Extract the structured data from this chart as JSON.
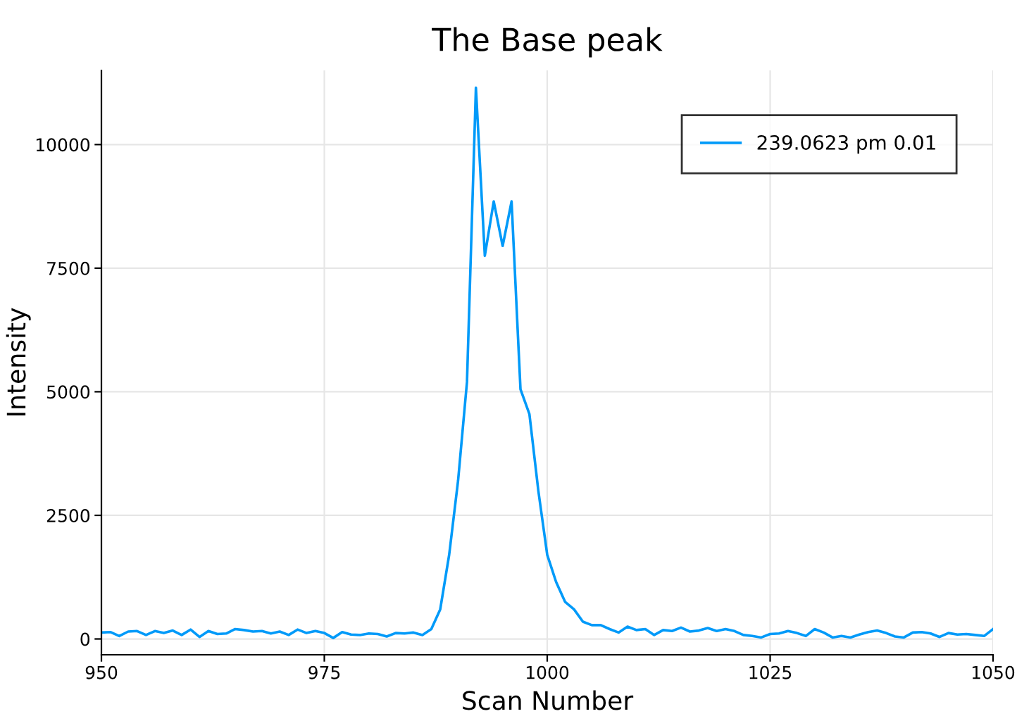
{
  "chart_data": {
    "type": "line",
    "title": "The Base peak",
    "xlabel": "Scan Number",
    "ylabel": "Intensity",
    "x": [
      950,
      951,
      952,
      953,
      954,
      955,
      956,
      957,
      958,
      959,
      960,
      961,
      962,
      963,
      964,
      965,
      966,
      967,
      968,
      969,
      970,
      971,
      972,
      973,
      974,
      975,
      976,
      977,
      978,
      979,
      980,
      981,
      982,
      983,
      984,
      985,
      986,
      987,
      988,
      989,
      990,
      991,
      992,
      993,
      994,
      995,
      996,
      997,
      998,
      999,
      1000,
      1001,
      1002,
      1003,
      1004,
      1005,
      1006,
      1007,
      1008,
      1009,
      1010,
      1011,
      1012,
      1013,
      1014,
      1015,
      1016,
      1017,
      1018,
      1019,
      1020,
      1021,
      1022,
      1023,
      1024,
      1025,
      1026,
      1027,
      1028,
      1029,
      1030,
      1031,
      1032,
      1033,
      1034,
      1035,
      1036,
      1037,
      1038,
      1039,
      1040,
      1041,
      1042,
      1043,
      1044,
      1045,
      1046,
      1047,
      1048,
      1049,
      1050
    ],
    "series": [
      {
        "name": "239.0623 pm 0.01",
        "color": "#009af9",
        "values": [
          130,
          140,
          60,
          150,
          160,
          80,
          160,
          120,
          170,
          80,
          190,
          40,
          160,
          100,
          110,
          200,
          180,
          150,
          160,
          110,
          150,
          80,
          190,
          120,
          160,
          120,
          20,
          140,
          90,
          80,
          110,
          100,
          50,
          120,
          110,
          130,
          80,
          200,
          600,
          1700,
          3200,
          5200,
          11150,
          7750,
          8850,
          7950,
          8850,
          5050,
          4550,
          3000,
          1700,
          1150,
          750,
          600,
          350,
          280,
          280,
          200,
          130,
          250,
          180,
          200,
          80,
          180,
          160,
          230,
          150,
          170,
          220,
          160,
          200,
          160,
          80,
          60,
          30,
          100,
          110,
          160,
          120,
          60,
          200,
          130,
          30,
          60,
          30,
          90,
          140,
          170,
          120,
          50,
          30,
          130,
          140,
          110,
          40,
          120,
          90,
          100,
          80,
          60,
          200
        ]
      }
    ],
    "xlim": [
      950,
      1050
    ],
    "ylim": [
      -320,
      11500
    ],
    "xticks": [
      950,
      975,
      1000,
      1025,
      1050
    ],
    "yticks": [
      0,
      2500,
      5000,
      7500,
      10000
    ],
    "grid": true,
    "legend": "top right"
  }
}
